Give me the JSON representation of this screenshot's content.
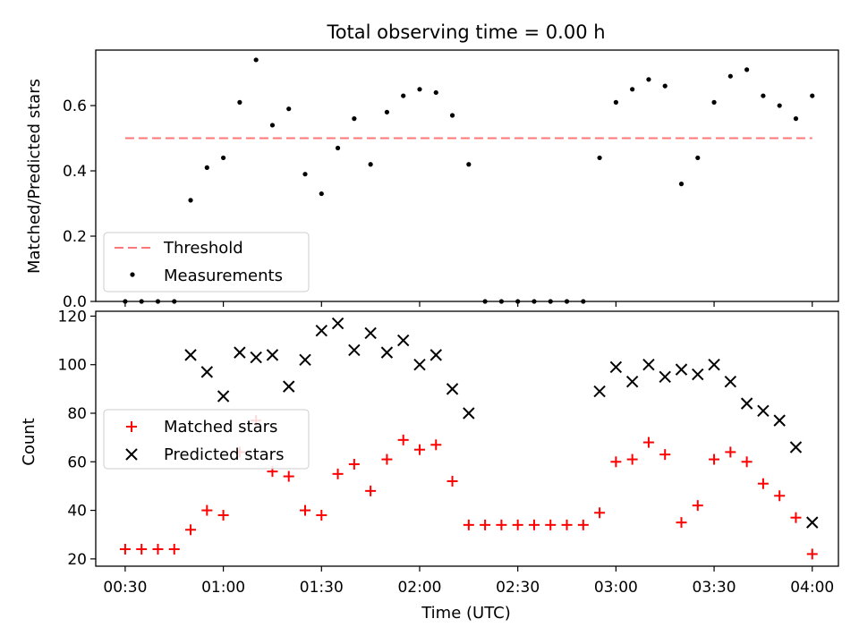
{
  "chart_data": [
    {
      "type": "scatter",
      "title": "Total observing time = 0.00 h",
      "ylabel": "Matched/Predicted stars",
      "xlabel": "",
      "ylim": [
        0,
        0.77
      ],
      "yticks": [
        "0.0",
        "0.2",
        "0.4",
        "0.6"
      ],
      "xticks_shown": false,
      "threshold": {
        "name": "Threshold",
        "value": 0.5,
        "x_range": [
          "00:30",
          "04:00"
        ],
        "color": "#ff7777",
        "style": "dashed"
      },
      "legend": {
        "placement": "lower-left",
        "entries": [
          "Threshold",
          "Measurements"
        ]
      },
      "series": [
        {
          "name": "Measurements",
          "color": "#000000",
          "marker": "dot",
          "x": [
            "00:30",
            "00:35",
            "00:40",
            "00:45",
            "00:50",
            "00:55",
            "01:00",
            "01:05",
            "01:10",
            "01:15",
            "01:20",
            "01:25",
            "01:30",
            "01:35",
            "01:40",
            "01:45",
            "01:50",
            "01:55",
            "02:00",
            "02:05",
            "02:10",
            "02:15",
            "02:20",
            "02:25",
            "02:30",
            "02:35",
            "02:40",
            "02:45",
            "02:50",
            "02:55",
            "03:00",
            "03:05",
            "03:10",
            "03:15",
            "03:20",
            "03:25",
            "03:30",
            "03:35",
            "03:40",
            "03:45",
            "03:50",
            "03:55",
            "04:00"
          ],
          "y": [
            0,
            0,
            0,
            0,
            0.31,
            0.41,
            0.44,
            0.61,
            0.74,
            0.54,
            0.59,
            0.39,
            0.33,
            0.47,
            0.56,
            0.42,
            0.58,
            0.63,
            0.65,
            0.64,
            0.57,
            0.42,
            0,
            0,
            0,
            0,
            0,
            0,
            0,
            0.44,
            0.61,
            0.65,
            0.68,
            0.66,
            0.36,
            0.44,
            0.61,
            0.69,
            0.71,
            0.63,
            0.6,
            0.56,
            0.63
          ]
        }
      ]
    },
    {
      "type": "scatter",
      "title": "",
      "ylabel": "Count",
      "xlabel": "Time (UTC)",
      "ylim": [
        17,
        122
      ],
      "yticks": [
        "20",
        "40",
        "60",
        "80",
        "100",
        "120"
      ],
      "xlim": [
        "00:21",
        "04:08"
      ],
      "xticks": [
        "00:30",
        "01:00",
        "01:30",
        "02:00",
        "02:30",
        "03:00",
        "03:30",
        "04:00"
      ],
      "legend": {
        "placement": "center-left",
        "entries": [
          "Matched stars",
          "Predicted stars"
        ]
      },
      "series": [
        {
          "name": "Matched stars",
          "color": "#ff0000",
          "marker": "plus",
          "x": [
            "00:30",
            "00:35",
            "00:40",
            "00:45",
            "00:50",
            "00:55",
            "01:00",
            "01:05",
            "01:10",
            "01:15",
            "01:20",
            "01:25",
            "01:30",
            "01:35",
            "01:40",
            "01:45",
            "01:50",
            "01:55",
            "02:00",
            "02:05",
            "02:10",
            "02:15",
            "02:20",
            "02:25",
            "02:30",
            "02:35",
            "02:40",
            "02:45",
            "02:50",
            "02:55",
            "03:00",
            "03:05",
            "03:10",
            "03:15",
            "03:20",
            "03:25",
            "03:30",
            "03:35",
            "03:40",
            "03:45",
            "03:50",
            "03:55",
            "04:00"
          ],
          "y": [
            24,
            24,
            24,
            24,
            32,
            40,
            38,
            64,
            77,
            56,
            54,
            40,
            38,
            55,
            59,
            48,
            61,
            69,
            65,
            67,
            52,
            34,
            34,
            34,
            34,
            34,
            34,
            34,
            34,
            39,
            60,
            61,
            68,
            63,
            35,
            42,
            61,
            64,
            60,
            51,
            46,
            37,
            22
          ]
        },
        {
          "name": "Predicted stars",
          "color": "#000000",
          "marker": "x",
          "x": [
            "00:50",
            "00:55",
            "01:00",
            "01:05",
            "01:10",
            "01:15",
            "01:20",
            "01:25",
            "01:30",
            "01:35",
            "01:40",
            "01:45",
            "01:50",
            "01:55",
            "02:00",
            "02:05",
            "02:10",
            "02:15",
            "02:55",
            "03:00",
            "03:05",
            "03:10",
            "03:15",
            "03:20",
            "03:25",
            "03:30",
            "03:35",
            "03:40",
            "03:45",
            "03:50",
            "03:55",
            "04:00"
          ],
          "y": [
            104,
            97,
            87,
            105,
            103,
            104,
            91,
            102,
            114,
            117,
            106,
            113,
            105,
            110,
            100,
            104,
            90,
            80,
            89,
            99,
            93,
            100,
            95,
            98,
            96,
            100,
            93,
            84,
            81,
            77,
            66,
            35
          ]
        }
      ]
    }
  ]
}
